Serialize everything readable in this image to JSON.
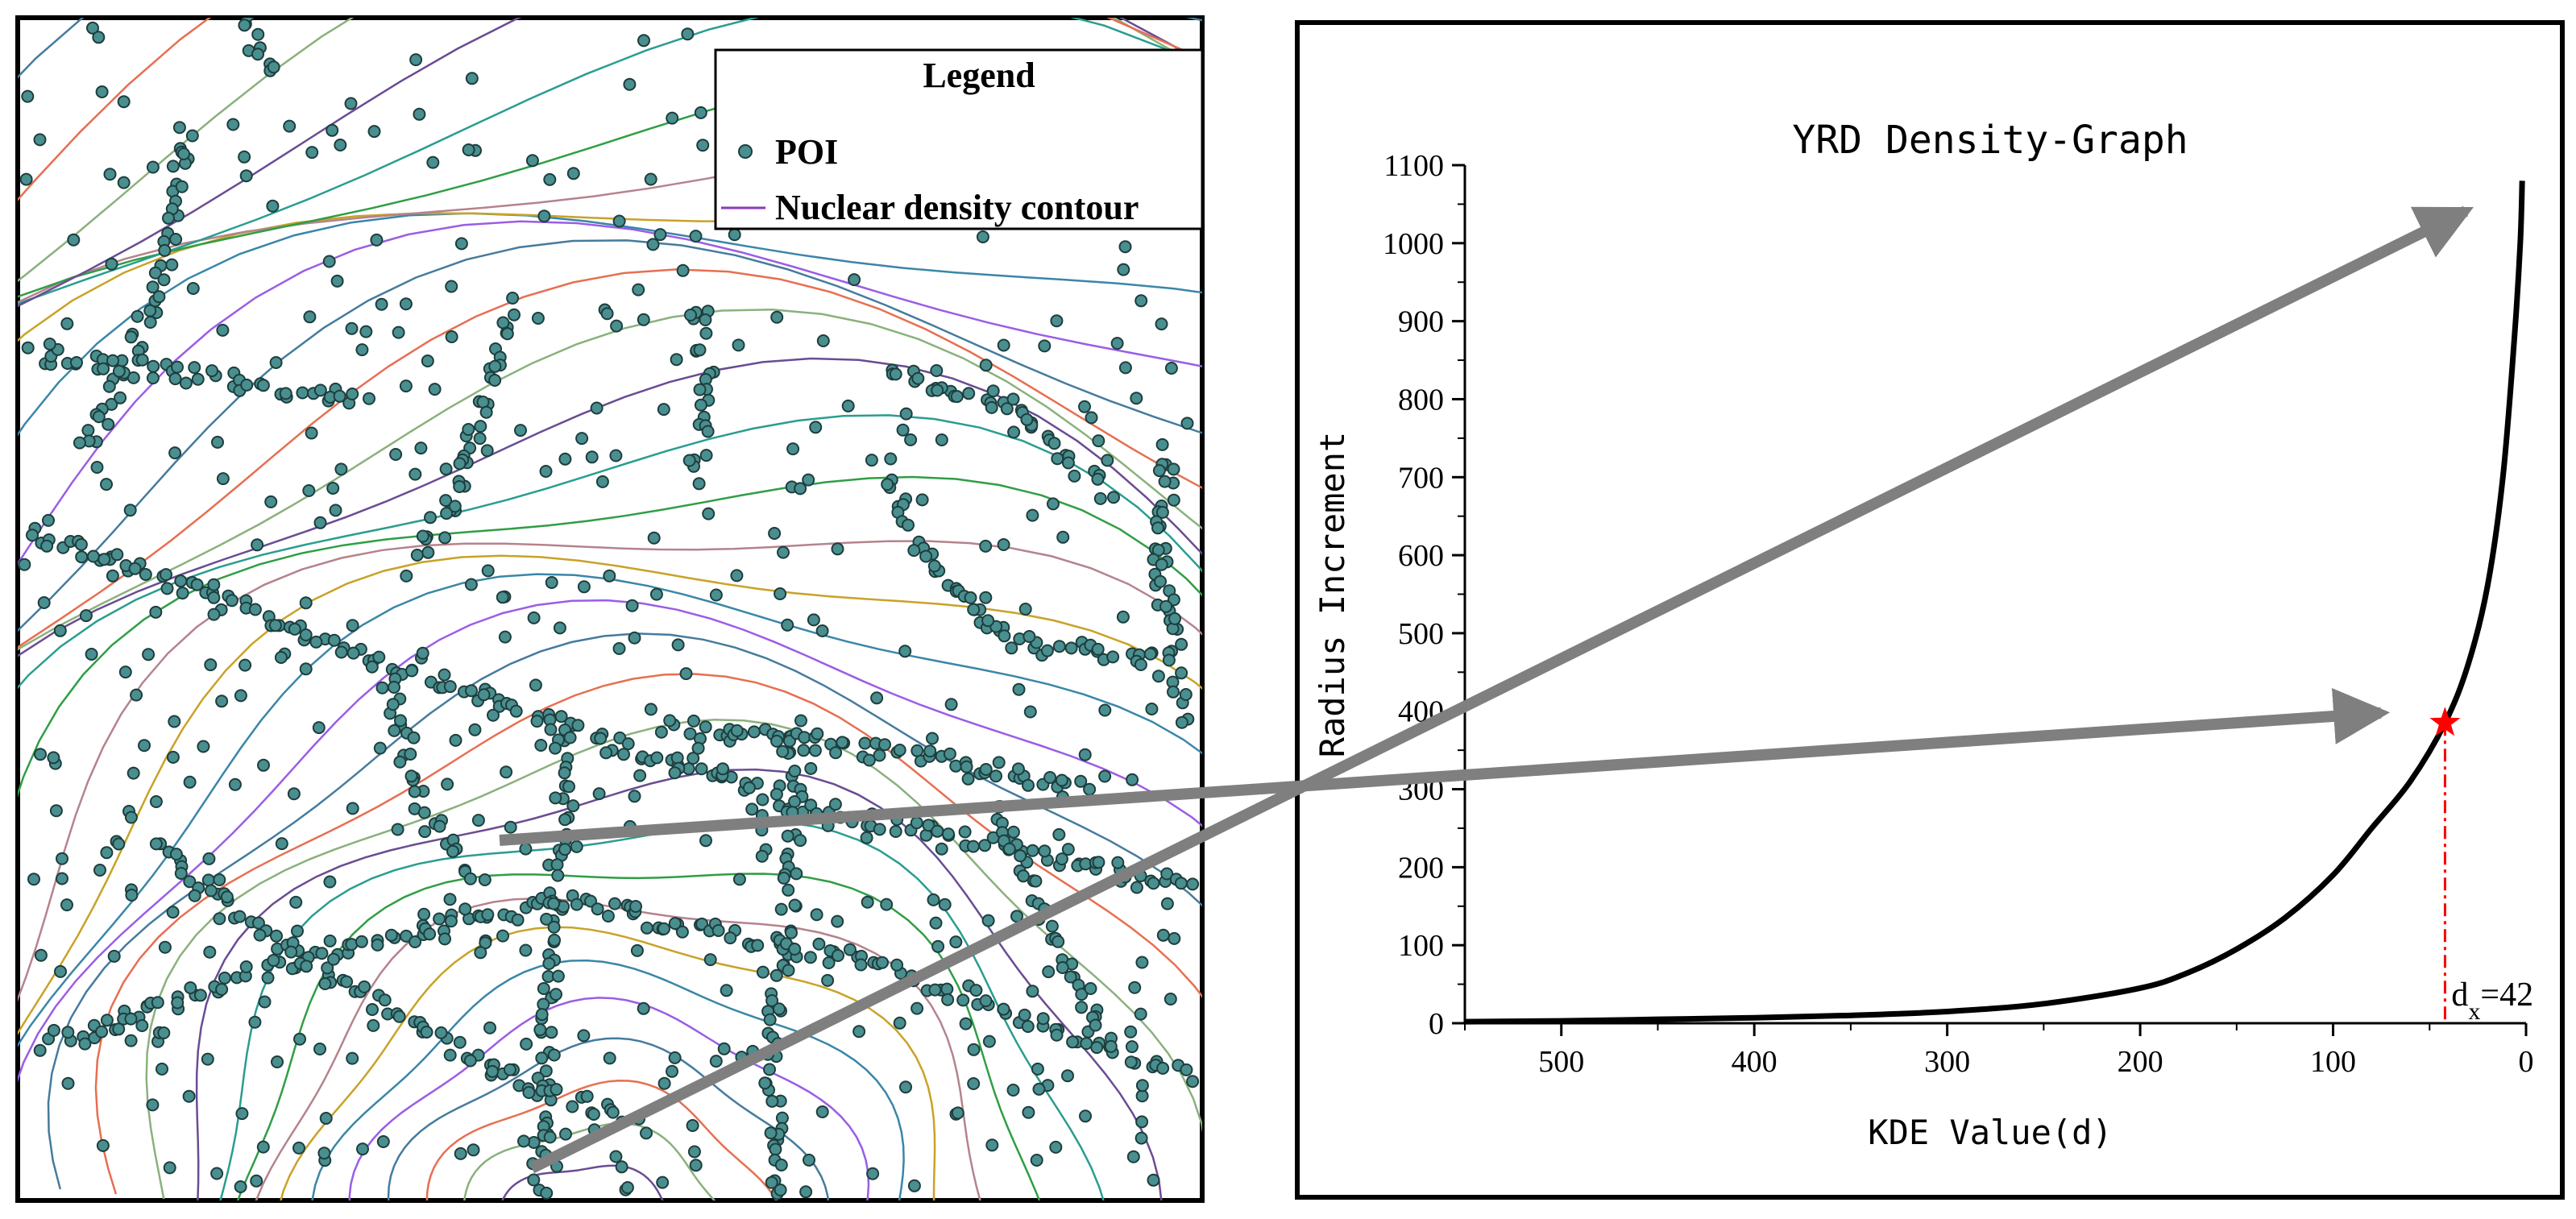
{
  "map_panel": {
    "legend": {
      "title": "Legend",
      "items": [
        {
          "label": "POI",
          "symbol": "point",
          "color": "#4a8f8f"
        },
        {
          "label": "Nuclear density contour",
          "symbol": "line",
          "color": "#8a3ab9"
        }
      ]
    },
    "contour_colors": [
      "#2a9d8f",
      "#6a4c93",
      "#8ab17d",
      "#e76f51",
      "#457b9d",
      "#9b5de5",
      "#3a86a8",
      "#c9a227",
      "#b5838d",
      "#2f9e44"
    ],
    "poi_color": "#4a8f8f"
  },
  "chart_data": {
    "type": "line",
    "title": "YRD Density-Graph",
    "xlabel": "KDE Value(d)",
    "ylabel": "Radius Increment",
    "xlim": [
      550,
      0
    ],
    "ylim": [
      0,
      1100
    ],
    "x_reversed": true,
    "xticks": [
      500,
      400,
      300,
      200,
      100,
      0
    ],
    "yticks": [
      0,
      100,
      200,
      300,
      400,
      500,
      600,
      700,
      800,
      900,
      1000,
      1100
    ],
    "grid": false,
    "series": [
      {
        "color": "#000000",
        "x": [
          550,
          500,
          450,
          400,
          350,
          300,
          250,
          200,
          175,
          150,
          125,
          100,
          80,
          60,
          42,
          30,
          20,
          12,
          6,
          3,
          2
        ],
        "y": [
          2,
          3,
          5,
          7,
          10,
          15,
          25,
          45,
          65,
          95,
          135,
          190,
          250,
          310,
          385,
          460,
          560,
          700,
          880,
          1000,
          1080
        ]
      }
    ],
    "marker": {
      "x": 42,
      "y": 385,
      "shape": "star",
      "color": "#ff0000"
    },
    "annotation": {
      "base": "d",
      "subscript": "x",
      "value": "=42",
      "x": 42
    }
  },
  "arrows": {
    "color": "#7f7f7f"
  }
}
